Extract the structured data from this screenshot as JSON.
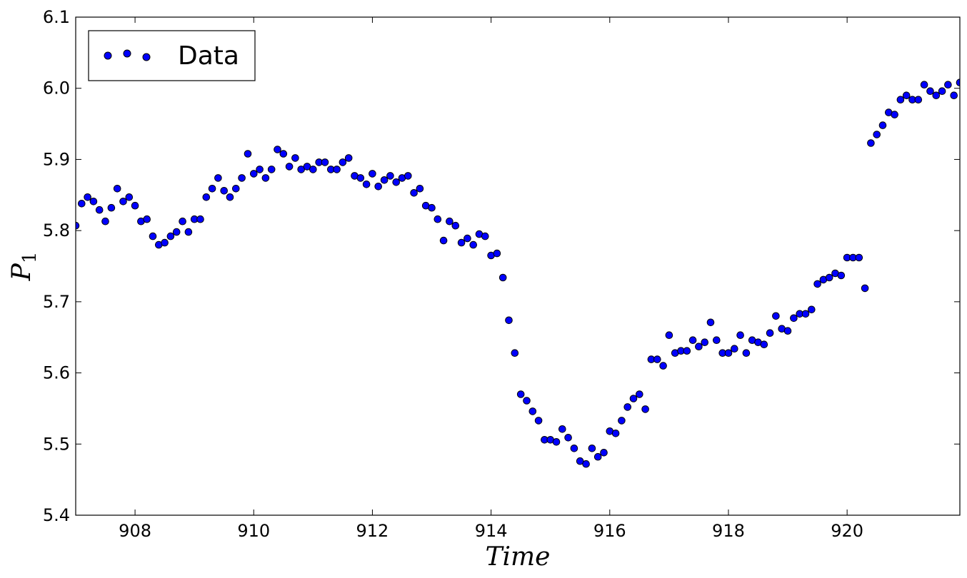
{
  "chart_data": {
    "type": "scatter",
    "title": "",
    "xlabel": "Time",
    "ylabel": "P",
    "ylabel_subscript": "1",
    "xlim": [
      907.0,
      921.9
    ],
    "ylim": [
      5.4,
      6.1
    ],
    "xticks": [
      908,
      910,
      912,
      914,
      916,
      918,
      920
    ],
    "xtick_labels": [
      "908",
      "910",
      "912",
      "914",
      "916",
      "918",
      "920"
    ],
    "yticks": [
      5.4,
      5.5,
      5.6,
      5.7,
      5.8,
      5.9,
      6.0,
      6.1
    ],
    "ytick_labels": [
      "5.4",
      "5.5",
      "5.6",
      "5.7",
      "5.8",
      "5.9",
      "6.0",
      "6.1"
    ],
    "grid": false,
    "legend": {
      "position": "top-left",
      "entries": [
        "Data"
      ]
    },
    "marker_color": "#0000ff",
    "series": [
      {
        "name": "Data",
        "x": [
          907.0,
          907.1,
          907.2,
          907.3,
          907.4,
          907.5,
          907.6,
          907.7,
          907.8,
          907.9,
          908.0,
          908.1,
          908.2,
          908.3,
          908.4,
          908.5,
          908.6,
          908.7,
          908.8,
          908.9,
          909.0,
          909.1,
          909.2,
          909.3,
          909.4,
          909.5,
          909.6,
          909.7,
          909.8,
          909.9,
          910.0,
          910.1,
          910.2,
          910.3,
          910.4,
          910.5,
          910.6,
          910.7,
          910.8,
          910.9,
          911.0,
          911.1,
          911.2,
          911.3,
          911.4,
          911.5,
          911.6,
          911.7,
          911.8,
          911.9,
          912.0,
          912.1,
          912.2,
          912.3,
          912.4,
          912.5,
          912.6,
          912.7,
          912.8,
          912.9,
          913.0,
          913.1,
          913.2,
          913.3,
          913.4,
          913.5,
          913.6,
          913.7,
          913.8,
          913.9,
          914.0,
          914.1,
          914.2,
          914.3,
          914.4,
          914.5,
          914.6,
          914.7,
          914.8,
          914.9,
          915.0,
          915.1,
          915.2,
          915.3,
          915.4,
          915.5,
          915.6,
          915.7,
          915.8,
          915.9,
          916.0,
          916.1,
          916.2,
          916.3,
          916.4,
          916.5,
          916.6,
          916.7,
          916.8,
          916.9,
          917.0,
          917.1,
          917.2,
          917.3,
          917.4,
          917.5,
          917.6,
          917.7,
          917.8,
          917.9,
          918.0,
          918.1,
          918.2,
          918.3,
          918.4,
          918.5,
          918.6,
          918.7,
          918.8,
          918.9,
          919.0,
          919.1,
          919.2,
          919.3,
          919.4,
          919.5,
          919.6,
          919.7,
          919.8,
          919.9,
          920.0,
          920.1,
          920.2,
          920.3,
          920.4,
          920.5,
          920.6,
          920.7,
          920.8,
          920.9,
          921.0,
          921.1,
          921.2,
          921.3,
          921.4,
          921.5,
          921.6,
          921.7,
          921.8,
          921.9
        ],
        "y": [
          5.807,
          5.838,
          5.847,
          5.841,
          5.829,
          5.813,
          5.832,
          5.859,
          5.841,
          5.847,
          5.835,
          5.813,
          5.816,
          5.792,
          5.78,
          5.783,
          5.792,
          5.798,
          5.813,
          5.798,
          5.816,
          5.816,
          5.847,
          5.859,
          5.874,
          5.856,
          5.847,
          5.859,
          5.874,
          5.908,
          5.88,
          5.886,
          5.874,
          5.886,
          5.914,
          5.908,
          5.89,
          5.902,
          5.886,
          5.89,
          5.886,
          5.896,
          5.896,
          5.886,
          5.886,
          5.896,
          5.902,
          5.877,
          5.874,
          5.865,
          5.88,
          5.862,
          5.871,
          5.877,
          5.868,
          5.874,
          5.877,
          5.853,
          5.859,
          5.835,
          5.832,
          5.816,
          5.786,
          5.813,
          5.807,
          5.783,
          5.789,
          5.78,
          5.795,
          5.792,
          5.765,
          5.768,
          5.734,
          5.674,
          5.628,
          5.57,
          5.561,
          5.546,
          5.533,
          5.506,
          5.506,
          5.503,
          5.521,
          5.509,
          5.494,
          5.476,
          5.472,
          5.494,
          5.482,
          5.488,
          5.518,
          5.515,
          5.533,
          5.552,
          5.564,
          5.57,
          5.549,
          5.619,
          5.619,
          5.61,
          5.653,
          5.628,
          5.631,
          5.631,
          5.646,
          5.637,
          5.643,
          5.671,
          5.646,
          5.628,
          5.628,
          5.634,
          5.653,
          5.628,
          5.646,
          5.643,
          5.64,
          5.656,
          5.68,
          5.662,
          5.659,
          5.677,
          5.683,
          5.683,
          5.689,
          5.725,
          5.731,
          5.734,
          5.74,
          5.737,
          5.762,
          5.762,
          5.762,
          5.719,
          5.923,
          5.935,
          5.948,
          5.966,
          5.963,
          5.984,
          5.99,
          5.984,
          5.984,
          6.005,
          5.996,
          5.99,
          5.996,
          6.005,
          5.99,
          6.008
        ]
      }
    ]
  }
}
